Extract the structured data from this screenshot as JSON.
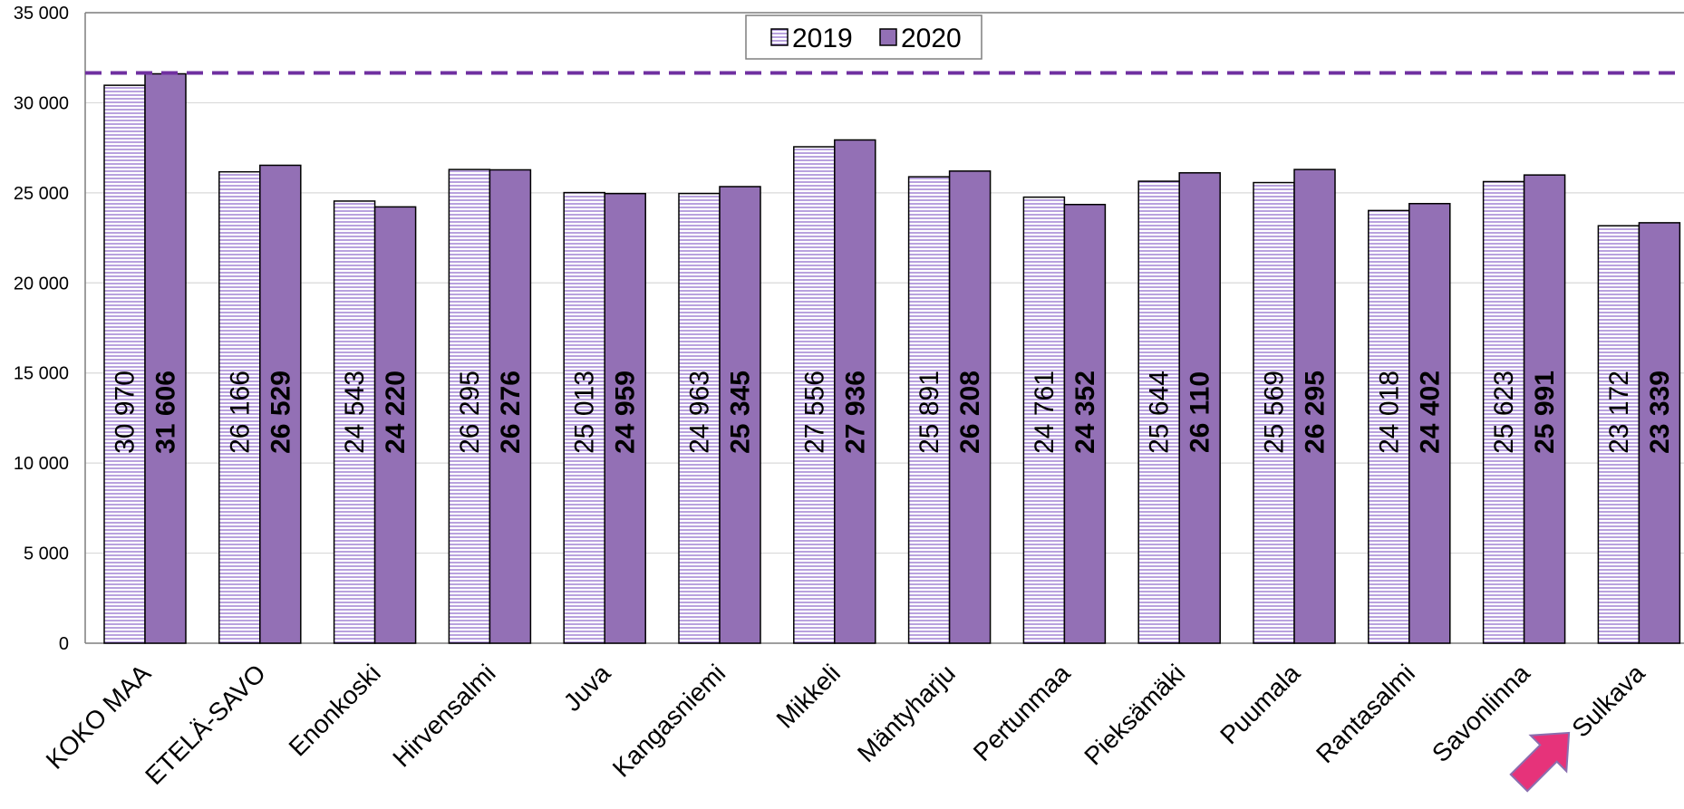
{
  "chart_data": {
    "type": "bar",
    "categories": [
      "KOKO MAA",
      "ETELÄ-SAVO",
      "Enonkoski",
      "Hirvensalmi",
      "Juva",
      "Kangasniemi",
      "Mikkeli",
      "Mäntyharju",
      "Pertunmaa",
      "Pieksämäki",
      "Puumala",
      "Rantasalmi",
      "Savonlinna",
      "Sulkava"
    ],
    "series": [
      {
        "name": "2019",
        "values": [
          30970,
          26166,
          24543,
          26295,
          25013,
          24963,
          27556,
          25891,
          24761,
          25644,
          25569,
          24018,
          25623,
          23172
        ],
        "labels": [
          "30 970",
          "26 166",
          "24 543",
          "26 295",
          "25 013",
          "24 963",
          "27 556",
          "25 891",
          "24 761",
          "25 644",
          "25 569",
          "24 018",
          "25 623",
          "23 172"
        ],
        "color": "#ffffff",
        "pattern_color": "#7e57c2"
      },
      {
        "name": "2020",
        "values": [
          31606,
          26529,
          24220,
          26276,
          24959,
          25345,
          27936,
          26208,
          24352,
          26110,
          26295,
          24402,
          25991,
          23339
        ],
        "labels": [
          "31 606",
          "26 529",
          "24 220",
          "26 276",
          "24 959",
          "25 345",
          "27 936",
          "26 208",
          "24 352",
          "26 110",
          "26 295",
          "24 402",
          "25 991",
          "23 339"
        ],
        "color": "#9370b5"
      }
    ],
    "y_ticks": [
      "0",
      "5 000",
      "10 000",
      "15 000",
      "20 000",
      "25 000",
      "30 000",
      "35 000"
    ],
    "ylim": [
      0,
      35000
    ],
    "reference_line": {
      "value": 31606,
      "style": "dashed",
      "color": "#7030a0"
    },
    "legend": {
      "position": "top-center",
      "items": [
        "2019",
        "2020"
      ]
    },
    "grid": true,
    "highlight_arrow_color": "#e6337a"
  }
}
